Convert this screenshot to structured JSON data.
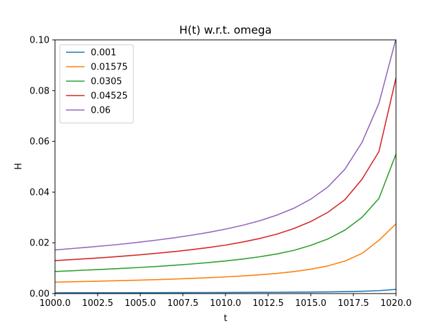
{
  "chart_data": {
    "type": "line",
    "title": "H(t) w.r.t. omega",
    "xlabel": "t",
    "ylabel": "H",
    "xlim": [
      1000,
      1020
    ],
    "ylim": [
      0,
      0.1
    ],
    "x_ticks": [
      1000.0,
      1002.5,
      1005.0,
      1007.5,
      1010.0,
      1012.5,
      1015.0,
      1017.5,
      1020.0
    ],
    "x_tick_labels": [
      "1000.0",
      "1002.5",
      "1005.0",
      "1007.5",
      "1010.0",
      "1012.5",
      "1015.0",
      "1017.5",
      "1020.0"
    ],
    "y_ticks": [
      0,
      0.02,
      0.04,
      0.06,
      0.08,
      0.1
    ],
    "y_tick_labels": [
      "0.00",
      "0.02",
      "0.04",
      "0.06",
      "0.08",
      "0.10"
    ],
    "grid": false,
    "legend_position": "top-left",
    "x": [
      1000,
      1001,
      1002,
      1003,
      1004,
      1005,
      1006,
      1007,
      1008,
      1009,
      1010,
      1011,
      1012,
      1013,
      1014,
      1015,
      1016,
      1017,
      1018,
      1019,
      1020
    ],
    "series": [
      {
        "name": "0.001",
        "color": "#1f77b4",
        "values": [
          0.0003,
          0.00031,
          0.00032,
          0.00033,
          0.00034,
          0.00035,
          0.00036,
          0.00038,
          0.00039,
          0.00041,
          0.00043,
          0.00045,
          0.00048,
          0.00051,
          0.00055,
          0.0006,
          0.00066,
          0.00075,
          0.0009,
          0.00115,
          0.00165
        ]
      },
      {
        "name": "0.01575",
        "color": "#ff7f0e",
        "values": [
          0.0045,
          0.00465,
          0.0048,
          0.00496,
          0.00512,
          0.0053,
          0.0055,
          0.00572,
          0.00597,
          0.00625,
          0.00657,
          0.00695,
          0.0074,
          0.00795,
          0.00865,
          0.0096,
          0.0109,
          0.0128,
          0.0158,
          0.021,
          0.0275
        ]
      },
      {
        "name": "0.0305",
        "color": "#2ca02c",
        "values": [
          0.0087,
          0.009,
          0.0093,
          0.0096,
          0.00995,
          0.0103,
          0.0107,
          0.01115,
          0.01165,
          0.0122,
          0.01285,
          0.0136,
          0.0145,
          0.0156,
          0.017,
          0.019,
          0.0215,
          0.025,
          0.03,
          0.0375,
          0.055
        ]
      },
      {
        "name": "0.04525",
        "color": "#d62728",
        "values": [
          0.013,
          0.0134,
          0.0138,
          0.01425,
          0.01475,
          0.0153,
          0.0159,
          0.01655,
          0.0173,
          0.01815,
          0.0191,
          0.0203,
          0.0217,
          0.0234,
          0.0256,
          0.0284,
          0.032,
          0.037,
          0.045,
          0.056,
          0.085
        ]
      },
      {
        "name": "0.06",
        "color": "#9467bd",
        "values": [
          0.0172,
          0.01775,
          0.0183,
          0.0189,
          0.01955,
          0.0203,
          0.0211,
          0.022,
          0.023,
          0.0241,
          0.0254,
          0.0269,
          0.0287,
          0.0309,
          0.0336,
          0.0372,
          0.042,
          0.049,
          0.0595,
          0.075,
          0.1005
        ]
      }
    ]
  }
}
